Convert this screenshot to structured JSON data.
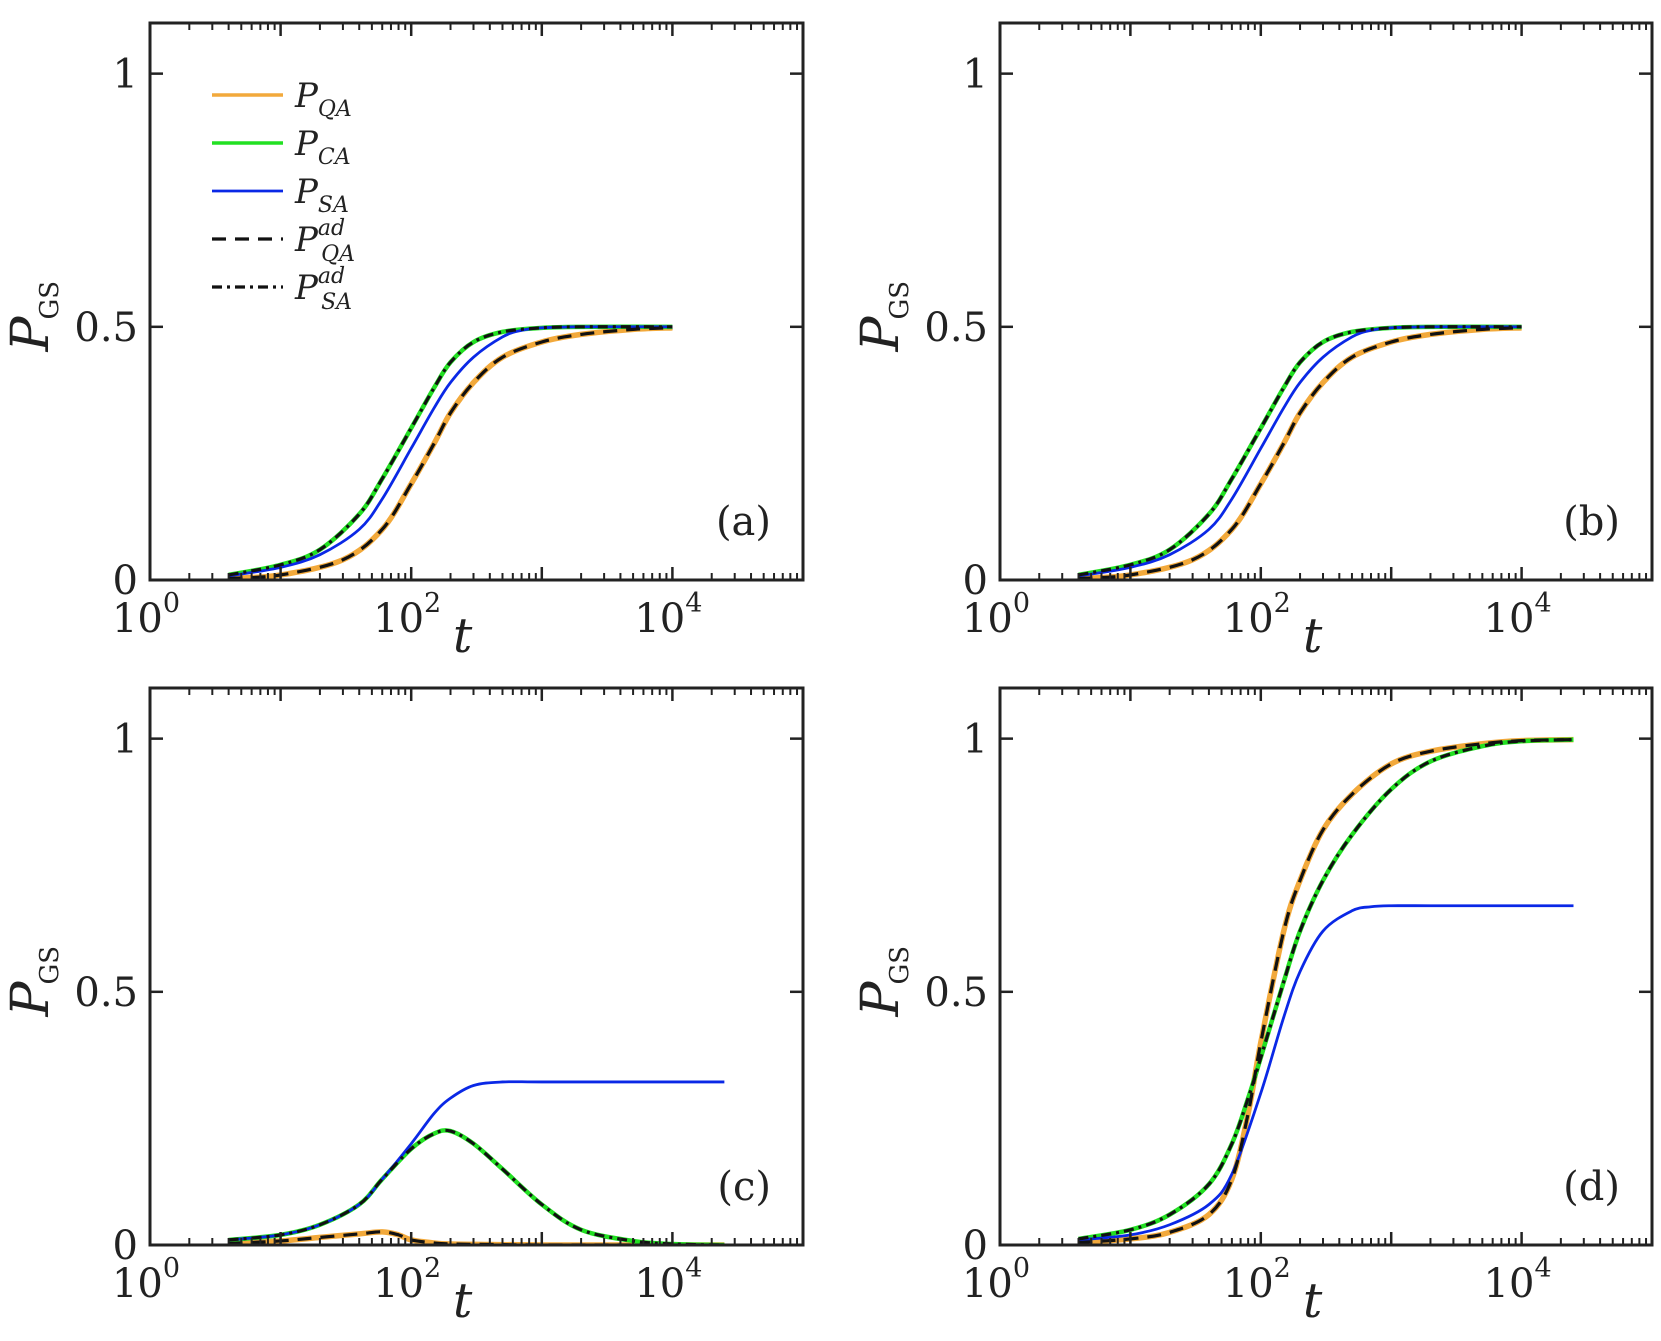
{
  "figure": {
    "colors": {
      "P_QA": "#f2a93b",
      "P_CA": "#22e022",
      "P_SA": "#0a28e6",
      "P_QA_ad": "#111111",
      "P_SA_ad": "#111111",
      "axes": "#222222"
    },
    "legend": [
      {
        "key": "P_QA",
        "main": "P",
        "sub": "QA",
        "sup": "",
        "style": "solid"
      },
      {
        "key": "P_CA",
        "main": "P",
        "sub": "CA",
        "sup": "",
        "style": "solid"
      },
      {
        "key": "P_SA",
        "main": "P",
        "sub": "SA",
        "sup": "",
        "style": "solid"
      },
      {
        "key": "P_QA_ad",
        "main": "P",
        "sub": "QA",
        "sup": "ad",
        "style": "dashed"
      },
      {
        "key": "P_SA_ad",
        "main": "P",
        "sub": "SA",
        "sup": "ad",
        "style": "dashdot"
      }
    ]
  },
  "chart_data": [
    {
      "type": "line",
      "panel_label": "(a)",
      "xlabel": "t",
      "ylabel_main": "P",
      "ylabel_sub": "GS",
      "xscale": "log",
      "xlim": [
        1,
        100000
      ],
      "ylim": [
        0,
        1.1
      ],
      "xticks": [
        {
          "base": "10",
          "exp": "0"
        },
        {
          "base": "10",
          "exp": "2"
        },
        {
          "base": "10",
          "exp": "4"
        }
      ],
      "yticks": [
        "0",
        "0.5",
        "1"
      ],
      "show_legend": true,
      "series": [
        {
          "name": "P_QA",
          "t": [
            4,
            10,
            30,
            60,
            100,
            150,
            200,
            300,
            500,
            1000,
            2000,
            5000,
            10000
          ],
          "values": [
            0.003,
            0.01,
            0.04,
            0.1,
            0.19,
            0.27,
            0.33,
            0.39,
            0.44,
            0.47,
            0.485,
            0.495,
            0.498
          ]
        },
        {
          "name": "P_CA",
          "t": [
            4,
            10,
            20,
            40,
            60,
            100,
            150,
            200,
            300,
            500,
            1000,
            2000,
            10000
          ],
          "values": [
            0.01,
            0.03,
            0.06,
            0.13,
            0.2,
            0.3,
            0.38,
            0.43,
            0.47,
            0.49,
            0.498,
            0.5,
            0.5
          ]
        },
        {
          "name": "P_SA",
          "t": [
            4,
            10,
            20,
            40,
            60,
            100,
            150,
            200,
            300,
            500,
            700,
            1000,
            2000,
            10000
          ],
          "values": [
            0.008,
            0.025,
            0.05,
            0.1,
            0.16,
            0.26,
            0.34,
            0.39,
            0.44,
            0.48,
            0.493,
            0.498,
            0.5,
            0.5
          ]
        },
        {
          "name": "P_QA_ad",
          "t": [
            4,
            10,
            30,
            60,
            100,
            150,
            200,
            300,
            500,
            1000,
            2000,
            5000,
            10000
          ],
          "values": [
            0.003,
            0.01,
            0.04,
            0.1,
            0.19,
            0.27,
            0.33,
            0.39,
            0.44,
            0.47,
            0.485,
            0.495,
            0.498
          ]
        },
        {
          "name": "P_SA_ad",
          "t": [
            4,
            10,
            20,
            40,
            60,
            100,
            150,
            200,
            300,
            500,
            1000,
            2000,
            10000
          ],
          "values": [
            0.01,
            0.03,
            0.06,
            0.13,
            0.2,
            0.3,
            0.38,
            0.43,
            0.47,
            0.49,
            0.498,
            0.5,
            0.5
          ]
        }
      ]
    },
    {
      "type": "line",
      "panel_label": "(b)",
      "xlabel": "t",
      "ylabel_main": "P",
      "ylabel_sub": "GS",
      "xscale": "log",
      "xlim": [
        1,
        100000
      ],
      "ylim": [
        0,
        1.1
      ],
      "xticks": [
        {
          "base": "10",
          "exp": "0"
        },
        {
          "base": "10",
          "exp": "2"
        },
        {
          "base": "10",
          "exp": "4"
        }
      ],
      "yticks": [
        "0",
        "0.5",
        "1"
      ],
      "show_legend": false,
      "series": [
        {
          "name": "P_QA",
          "t": [
            4,
            10,
            30,
            60,
            100,
            150,
            200,
            300,
            500,
            1000,
            2000,
            5000,
            10000
          ],
          "values": [
            0.003,
            0.01,
            0.04,
            0.1,
            0.19,
            0.27,
            0.33,
            0.39,
            0.44,
            0.47,
            0.485,
            0.495,
            0.498
          ]
        },
        {
          "name": "P_CA",
          "t": [
            4,
            10,
            20,
            40,
            60,
            100,
            150,
            200,
            300,
            500,
            1000,
            2000,
            10000
          ],
          "values": [
            0.01,
            0.03,
            0.06,
            0.13,
            0.2,
            0.3,
            0.38,
            0.43,
            0.47,
            0.49,
            0.498,
            0.5,
            0.5
          ]
        },
        {
          "name": "P_SA",
          "t": [
            4,
            10,
            20,
            40,
            60,
            100,
            150,
            200,
            300,
            500,
            700,
            1000,
            2000,
            10000
          ],
          "values": [
            0.008,
            0.025,
            0.05,
            0.1,
            0.16,
            0.26,
            0.34,
            0.39,
            0.44,
            0.48,
            0.493,
            0.498,
            0.5,
            0.5
          ]
        },
        {
          "name": "P_QA_ad",
          "t": [
            4,
            10,
            30,
            60,
            100,
            150,
            200,
            300,
            500,
            1000,
            2000,
            5000,
            10000
          ],
          "values": [
            0.003,
            0.01,
            0.04,
            0.1,
            0.19,
            0.27,
            0.33,
            0.39,
            0.44,
            0.47,
            0.485,
            0.495,
            0.498
          ]
        },
        {
          "name": "P_SA_ad",
          "t": [
            4,
            10,
            20,
            40,
            60,
            100,
            150,
            200,
            300,
            500,
            1000,
            2000,
            10000
          ],
          "values": [
            0.01,
            0.03,
            0.06,
            0.13,
            0.2,
            0.3,
            0.38,
            0.43,
            0.47,
            0.49,
            0.498,
            0.5,
            0.5
          ]
        }
      ]
    },
    {
      "type": "line",
      "panel_label": "(c)",
      "xlabel": "t",
      "ylabel_main": "P",
      "ylabel_sub": "GS",
      "xscale": "log",
      "xlim": [
        1,
        100000
      ],
      "ylim": [
        0,
        1.1
      ],
      "xticks": [
        {
          "base": "10",
          "exp": "0"
        },
        {
          "base": "10",
          "exp": "2"
        },
        {
          "base": "10",
          "exp": "4"
        }
      ],
      "yticks": [
        "0",
        "0.5",
        "1"
      ],
      "show_legend": false,
      "series": [
        {
          "name": "P_QA",
          "t": [
            4,
            10,
            20,
            40,
            60,
            80,
            100,
            150,
            200,
            400,
            1000,
            5000,
            25000
          ],
          "values": [
            0.003,
            0.008,
            0.015,
            0.022,
            0.026,
            0.02,
            0.01,
            0.004,
            0.002,
            0.001,
            0.0,
            0.0,
            0.0
          ]
        },
        {
          "name": "P_CA",
          "t": [
            4,
            10,
            20,
            40,
            60,
            100,
            150,
            200,
            300,
            500,
            1000,
            2000,
            5000,
            10000,
            25000
          ],
          "values": [
            0.01,
            0.02,
            0.04,
            0.08,
            0.13,
            0.19,
            0.22,
            0.225,
            0.2,
            0.15,
            0.08,
            0.03,
            0.008,
            0.002,
            0.0
          ]
        },
        {
          "name": "P_SA",
          "t": [
            4,
            10,
            20,
            40,
            60,
            100,
            150,
            200,
            300,
            500,
            1000,
            5000,
            25000
          ],
          "values": [
            0.01,
            0.02,
            0.04,
            0.08,
            0.13,
            0.2,
            0.26,
            0.29,
            0.315,
            0.322,
            0.322,
            0.322,
            0.322
          ]
        },
        {
          "name": "P_QA_ad",
          "t": [
            4,
            10,
            20,
            40,
            60,
            80,
            100,
            150,
            200,
            400,
            1000,
            5000,
            25000
          ],
          "values": [
            0.003,
            0.008,
            0.015,
            0.022,
            0.026,
            0.02,
            0.01,
            0.004,
            0.002,
            0.001,
            0.0,
            0.0,
            0.0
          ]
        },
        {
          "name": "P_SA_ad",
          "t": [
            4,
            10,
            20,
            40,
            60,
            100,
            150,
            200,
            300,
            500,
            1000,
            2000,
            5000,
            10000,
            25000
          ],
          "values": [
            0.01,
            0.02,
            0.04,
            0.08,
            0.13,
            0.19,
            0.22,
            0.225,
            0.2,
            0.15,
            0.08,
            0.03,
            0.008,
            0.002,
            0.0
          ]
        }
      ]
    },
    {
      "type": "line",
      "panel_label": "(d)",
      "xlabel": "t",
      "ylabel_main": "P",
      "ylabel_sub": "GS",
      "xscale": "log",
      "xlim": [
        1,
        100000
      ],
      "ylim": [
        0,
        1.1
      ],
      "xticks": [
        {
          "base": "10",
          "exp": "0"
        },
        {
          "base": "10",
          "exp": "2"
        },
        {
          "base": "10",
          "exp": "4"
        }
      ],
      "yticks": [
        "0",
        "0.5",
        "1"
      ],
      "show_legend": false,
      "series": [
        {
          "name": "P_QA",
          "t": [
            4,
            10,
            20,
            40,
            60,
            80,
            100,
            150,
            200,
            300,
            500,
            1000,
            2000,
            5000,
            10000,
            25000
          ],
          "values": [
            0.005,
            0.012,
            0.025,
            0.06,
            0.13,
            0.26,
            0.4,
            0.62,
            0.72,
            0.82,
            0.89,
            0.95,
            0.975,
            0.99,
            0.996,
            0.998
          ]
        },
        {
          "name": "P_CA",
          "t": [
            4,
            10,
            20,
            40,
            60,
            80,
            100,
            150,
            200,
            300,
            500,
            1000,
            2000,
            5000,
            10000,
            25000
          ],
          "values": [
            0.012,
            0.03,
            0.06,
            0.12,
            0.2,
            0.29,
            0.37,
            0.52,
            0.62,
            0.72,
            0.81,
            0.9,
            0.955,
            0.985,
            0.995,
            0.998
          ]
        },
        {
          "name": "P_SA",
          "t": [
            4,
            10,
            20,
            40,
            60,
            100,
            150,
            200,
            300,
            500,
            700,
            1000,
            2000,
            5000,
            25000
          ],
          "values": [
            0.01,
            0.02,
            0.04,
            0.08,
            0.14,
            0.3,
            0.45,
            0.54,
            0.62,
            0.66,
            0.668,
            0.67,
            0.67,
            0.67,
            0.67
          ]
        },
        {
          "name": "P_QA_ad",
          "t": [
            4,
            10,
            20,
            40,
            60,
            80,
            100,
            150,
            200,
            300,
            500,
            1000,
            2000,
            5000,
            10000,
            25000
          ],
          "values": [
            0.005,
            0.012,
            0.025,
            0.06,
            0.13,
            0.26,
            0.4,
            0.62,
            0.72,
            0.82,
            0.89,
            0.95,
            0.975,
            0.99,
            0.996,
            0.998
          ]
        },
        {
          "name": "P_SA_ad",
          "t": [
            4,
            10,
            20,
            40,
            60,
            80,
            100,
            150,
            200,
            300,
            500,
            1000,
            2000,
            5000,
            10000,
            25000
          ],
          "values": [
            0.012,
            0.03,
            0.06,
            0.12,
            0.2,
            0.29,
            0.37,
            0.52,
            0.62,
            0.72,
            0.81,
            0.9,
            0.955,
            0.985,
            0.995,
            0.998
          ]
        }
      ]
    }
  ]
}
